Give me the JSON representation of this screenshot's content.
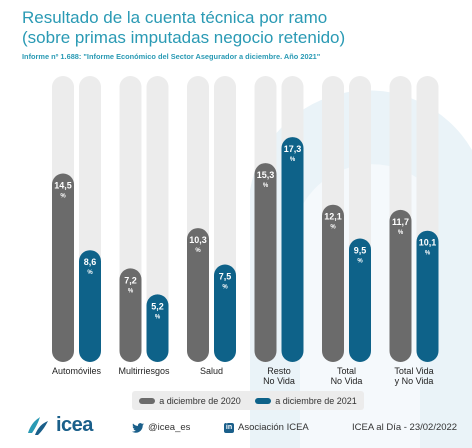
{
  "header": {
    "title_line1": "Resultado de la cuenta técnica por ramo",
    "title_line2": "(sobre primas imputadas negocio retenido)",
    "subtitle": "Informe nº 1.688: \"Informe Económico del Sector Asegurador a diciembre. Año 2021\""
  },
  "chart_data": {
    "type": "bar",
    "categories": [
      "Automóviles",
      "Multirriesgos",
      "Salud",
      "Resto\nNo Vida",
      "Total\nNo Vida",
      "Total Vida\ny No Vida"
    ],
    "series": [
      {
        "name": "a diciembre de 2020",
        "values": [
          14.5,
          7.2,
          10.3,
          15.3,
          12.1,
          11.7
        ],
        "labels": [
          "14,5",
          "7,2",
          "10,3",
          "15,3",
          "12,1",
          "11,7"
        ]
      },
      {
        "name": "a diciembre de 2021",
        "values": [
          8.6,
          5.2,
          7.5,
          17.3,
          9.5,
          10.1
        ],
        "labels": [
          "8,6",
          "5,2",
          "7,5",
          "17,3",
          "9,5",
          "10,1"
        ]
      }
    ],
    "unit": "%",
    "ylim": [
      0,
      22
    ],
    "colors": {
      "series_2020": "#6b6b6b",
      "series_2021": "#0e6289",
      "track": "#ececec"
    },
    "legend": "bottom"
  },
  "legend": {
    "item_2020": "a diciembre de 2020",
    "item_2021": "a diciembre de 2021"
  },
  "footer": {
    "logo": "icea",
    "twitter": "@icea_es",
    "linkedin": "Asociación ICEA",
    "date": "ICEA al Día - 23/02/2022"
  }
}
